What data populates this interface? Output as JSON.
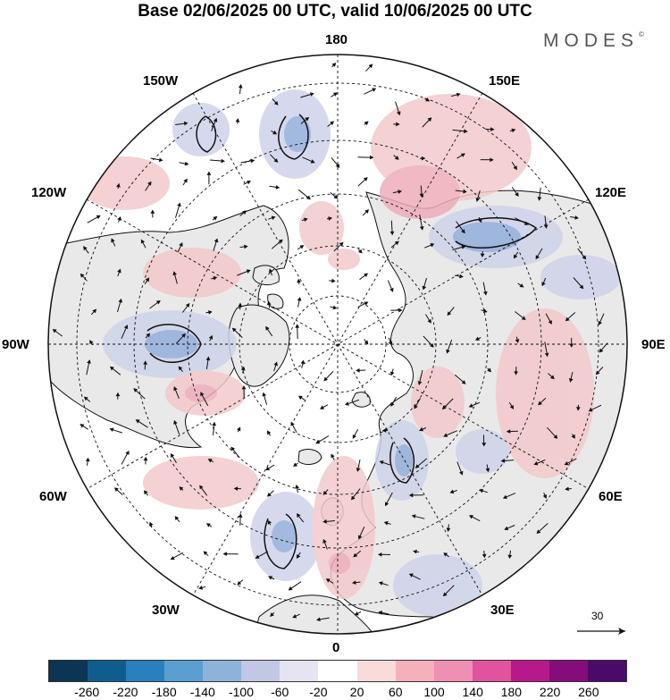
{
  "title": "Base 02/06/2025 00 UTC, valid 10/06/2025 00 UTC",
  "brand": {
    "name": "MODES",
    "mark": "©"
  },
  "longitude_labels": {
    "north": "180",
    "north_east": "150E",
    "north_west": "150W",
    "upper_east": "120E",
    "upper_west": "120W",
    "east": "90E",
    "west": "90W",
    "lower_east": "60E",
    "lower_west": "60W",
    "south_east": "30E",
    "south_west": "30W",
    "south": "0"
  },
  "reference_vector": {
    "label": "30"
  },
  "colorbar": {
    "colors": [
      "#0b3553",
      "#0f5d8f",
      "#2a80bf",
      "#5b9fd0",
      "#8db3db",
      "#c2c7e3",
      "#e5e4f1",
      "#ffffff",
      "#f9dbdb",
      "#f6b0bc",
      "#f08fb4",
      "#e2539f",
      "#b7198d",
      "#850d7b",
      "#4a0a6a"
    ],
    "ticks": [
      "-260",
      "-220",
      "-180",
      "-140",
      "-100",
      "-60",
      "-20",
      "20",
      "60",
      "100",
      "140",
      "180",
      "220",
      "260"
    ]
  },
  "map_style": {
    "land_fill": "#e9e9e9",
    "ocean_fill": "#ffffff",
    "positive_fill": "#f3c9cc",
    "strong_positive_fill": "#eeadb9",
    "negative_fill": "#cfd3ea",
    "strong_negative_fill": "#93aedb",
    "coastline": "#111111",
    "graticule": "#111111"
  }
}
